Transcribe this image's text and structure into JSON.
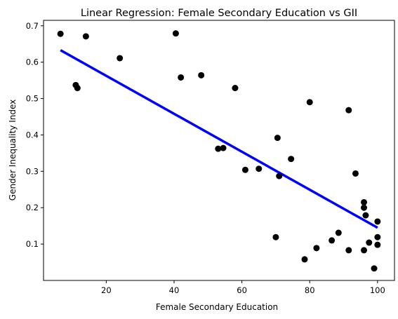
{
  "chart_data": {
    "type": "scatter",
    "title": "Linear Regression: Female Secondary Education vs GII",
    "xlabel": "Female Secondary Education",
    "ylabel": "Gender Inequality Index",
    "xlim": [
      1.5,
      105
    ],
    "ylim": [
      0.0,
      0.715
    ],
    "xticks": [
      20,
      40,
      60,
      80,
      100
    ],
    "yticks": [
      0.1,
      0.2,
      0.3,
      0.4,
      0.5,
      0.6,
      0.7
    ],
    "grid": false,
    "points": [
      {
        "x": 6.5,
        "y": 0.678
      },
      {
        "x": 11.0,
        "y": 0.537
      },
      {
        "x": 11.5,
        "y": 0.529
      },
      {
        "x": 14.0,
        "y": 0.671
      },
      {
        "x": 24.0,
        "y": 0.611
      },
      {
        "x": 40.5,
        "y": 0.679
      },
      {
        "x": 42.0,
        "y": 0.558
      },
      {
        "x": 48.0,
        "y": 0.564
      },
      {
        "x": 53.0,
        "y": 0.362
      },
      {
        "x": 54.5,
        "y": 0.364
      },
      {
        "x": 58.0,
        "y": 0.529
      },
      {
        "x": 61.0,
        "y": 0.304
      },
      {
        "x": 65.0,
        "y": 0.307
      },
      {
        "x": 70.0,
        "y": 0.119
      },
      {
        "x": 70.5,
        "y": 0.392
      },
      {
        "x": 71.0,
        "y": 0.287
      },
      {
        "x": 74.5,
        "y": 0.334
      },
      {
        "x": 78.5,
        "y": 0.058
      },
      {
        "x": 80.0,
        "y": 0.49
      },
      {
        "x": 82.0,
        "y": 0.089
      },
      {
        "x": 86.5,
        "y": 0.11
      },
      {
        "x": 88.5,
        "y": 0.131
      },
      {
        "x": 91.5,
        "y": 0.468
      },
      {
        "x": 91.5,
        "y": 0.083
      },
      {
        "x": 93.5,
        "y": 0.294
      },
      {
        "x": 96.0,
        "y": 0.215
      },
      {
        "x": 96.0,
        "y": 0.2
      },
      {
        "x": 96.0,
        "y": 0.083
      },
      {
        "x": 96.5,
        "y": 0.179
      },
      {
        "x": 97.5,
        "y": 0.104
      },
      {
        "x": 99.0,
        "y": 0.033
      },
      {
        "x": 100.0,
        "y": 0.162
      },
      {
        "x": 100.0,
        "y": 0.119
      },
      {
        "x": 100.0,
        "y": 0.098
      }
    ],
    "regression_line": {
      "x": [
        6.5,
        100.0
      ],
      "y": [
        0.633,
        0.145
      ]
    },
    "point_color": "#000000",
    "line_color": "#0000ff"
  }
}
